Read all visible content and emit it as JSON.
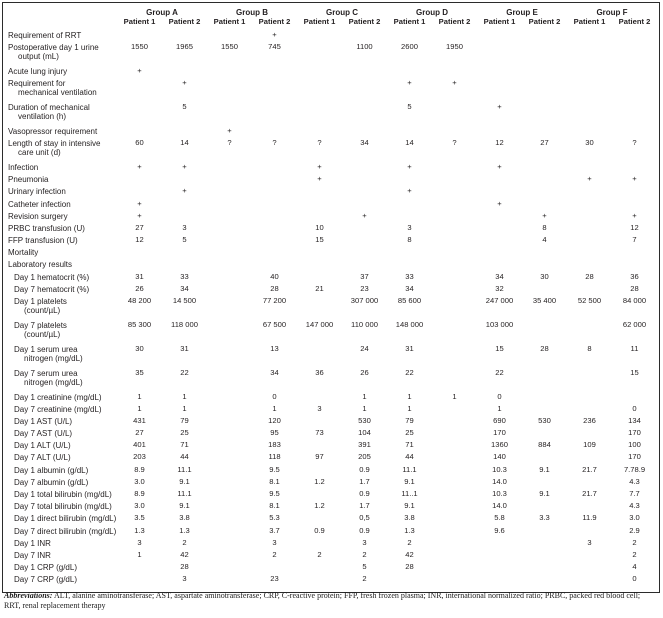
{
  "table": {
    "groups": [
      "Group A",
      "Group B",
      "Group C",
      "Group D",
      "Group E",
      "Group F"
    ],
    "patients": [
      "Patient 1",
      "Patient 2"
    ],
    "rows": [
      {
        "label": "Requirement of RRT",
        "values": [
          "",
          "",
          "",
          "+",
          "",
          "",
          "",
          "",
          "",
          "",
          "",
          ""
        ]
      },
      {
        "label": "Postoperative day 1 urine",
        "label2": "output (mL)",
        "values": [
          "1550",
          "1965",
          "1550",
          "745",
          "",
          "1100",
          "2600",
          "1950",
          "",
          "",
          "",
          ""
        ]
      },
      {
        "label": "Acute lung injury",
        "values": [
          "+",
          "",
          "",
          "",
          "",
          "",
          "",
          "",
          "",
          "",
          "",
          ""
        ]
      },
      {
        "label": "Requirement for",
        "label2": "mechanical ventilation",
        "values": [
          "",
          "+",
          "",
          "",
          "",
          "",
          "+",
          "+",
          "",
          "",
          "",
          ""
        ]
      },
      {
        "label": "Duration of mechanical",
        "label2": "ventilation (h)",
        "values": [
          "",
          "5",
          "",
          "",
          "",
          "",
          "5",
          "",
          "+",
          "",
          "",
          ""
        ]
      },
      {
        "label": "Vasopressor requirement",
        "values": [
          "",
          "",
          "+",
          "",
          "",
          "",
          "",
          "",
          "",
          "",
          "",
          ""
        ]
      },
      {
        "label": "Length of stay in intensive",
        "label2": "care unit (d)",
        "values": [
          "60",
          "14",
          "?",
          "?",
          "?",
          "34",
          "14",
          "?",
          "12",
          "27",
          "30",
          "?"
        ]
      },
      {
        "label": "Infection",
        "values": [
          "+",
          "+",
          "",
          "",
          "+",
          "",
          "+",
          "",
          "+",
          "",
          "",
          ""
        ]
      },
      {
        "label": "Pneumonia",
        "values": [
          "",
          "",
          "",
          "",
          "+",
          "",
          "",
          "",
          "",
          "",
          "+",
          "+"
        ]
      },
      {
        "label": "Urinary infection",
        "values": [
          "",
          "+",
          "",
          "",
          "",
          "",
          "+",
          "",
          "",
          "",
          "",
          ""
        ]
      },
      {
        "label": "Catheter infection",
        "values": [
          "+",
          "",
          "",
          "",
          "",
          "",
          "",
          "",
          "+",
          "",
          "",
          ""
        ]
      },
      {
        "label": "Revision surgery",
        "values": [
          "+",
          "",
          "",
          "",
          "",
          "+",
          "",
          "",
          "",
          "+",
          "",
          "+"
        ]
      },
      {
        "label": "PRBC transfusion (U)",
        "values": [
          "27",
          "3",
          "",
          "",
          "10",
          "",
          "3",
          "",
          "",
          "8",
          "",
          "12"
        ]
      },
      {
        "label": "FFP transfusion (U)",
        "values": [
          "12",
          "5",
          "",
          "",
          "15",
          "",
          "8",
          "",
          "",
          "4",
          "",
          "7"
        ]
      },
      {
        "label": "Mortality",
        "values": [
          "",
          "",
          "",
          "",
          "",
          "",
          "",
          "",
          "",
          "",
          "",
          ""
        ]
      },
      {
        "label": "Laboratory results",
        "values": [
          "",
          "",
          "",
          "",
          "",
          "",
          "",
          "",
          "",
          "",
          "",
          ""
        ]
      },
      {
        "label": "Day 1 hematocrit (%)",
        "sub": true,
        "values": [
          "31",
          "33",
          "",
          "40",
          "",
          "37",
          "33",
          "",
          "34",
          "30",
          "28",
          "36"
        ]
      },
      {
        "label": "Day 7 hematocrit (%)",
        "sub": true,
        "values": [
          "26",
          "34",
          "",
          "28",
          "21",
          "23",
          "34",
          "",
          "32",
          "",
          "",
          "28"
        ]
      },
      {
        "label": "Day 1 platelets",
        "label2": "(count/µL)",
        "sub": true,
        "values": [
          "48 200",
          "14 500",
          "",
          "77 200",
          "",
          "307 000",
          "85 600",
          "",
          "247 000",
          "35 400",
          "52 500",
          "84 000"
        ]
      },
      {
        "label": "Day 7 platelets",
        "label2": "(count/µL)",
        "sub": true,
        "values": [
          "85 300",
          "118 000",
          "",
          "67 500",
          "147 000",
          "110 000",
          "148 000",
          "",
          "103 000",
          "",
          "",
          "62 000"
        ]
      },
      {
        "label": "Day 1 serum urea",
        "label2": "nitrogen (mg/dL)",
        "sub": true,
        "values": [
          "30",
          "31",
          "",
          "13",
          "",
          "24",
          "31",
          "",
          "15",
          "28",
          "8",
          "11"
        ]
      },
      {
        "label": "Day 7 serum urea",
        "label2": "nitrogen (mg/dL)",
        "sub": true,
        "values": [
          "35",
          "22",
          "",
          "34",
          "36",
          "26",
          "22",
          "",
          "22",
          "",
          "",
          "15"
        ]
      },
      {
        "label": "Day 1 creatinine (mg/dL)",
        "sub": true,
        "values": [
          "1",
          "1",
          "",
          "0",
          "",
          "1",
          "1",
          "1",
          "0",
          "",
          "",
          ""
        ]
      },
      {
        "label": "Day 7 creatinine (mg/dL)",
        "sub": true,
        "values": [
          "1",
          "1",
          "",
          "1",
          "3",
          "1",
          "1",
          "",
          "1",
          "",
          "",
          "0"
        ]
      },
      {
        "label": "Day 1 AST (U/L)",
        "sub": true,
        "values": [
          "431",
          "79",
          "",
          "120",
          "",
          "530",
          "79",
          "",
          "690",
          "530",
          "236",
          "134"
        ]
      },
      {
        "label": "Day 7 AST (U/L)",
        "sub": true,
        "values": [
          "27",
          "25",
          "",
          "95",
          "73",
          "104",
          "25",
          "",
          "170",
          "",
          "",
          "170"
        ]
      },
      {
        "label": "Day 1 ALT (U/L)",
        "sub": true,
        "values": [
          "401",
          "71",
          "",
          "183",
          "",
          "391",
          "71",
          "",
          "1360",
          "884",
          "109",
          "100"
        ]
      },
      {
        "label": "Day 7 ALT (U/L)",
        "sub": true,
        "values": [
          "203",
          "44",
          "",
          "118",
          "97",
          "205",
          "44",
          "",
          "140",
          "",
          "",
          "170"
        ]
      },
      {
        "label": "Day 1 albumin (g/dL)",
        "sub": true,
        "values": [
          "8.9",
          "11.1",
          "",
          "9.5",
          "",
          "0.9",
          "11.1",
          "",
          "10.3",
          "9.1",
          "21.7",
          "7.78.9"
        ]
      },
      {
        "label": "Day 7 albumin (g/dL)",
        "sub": true,
        "values": [
          "3.0",
          "9.1",
          "",
          "8.1",
          "1.2",
          "1.7",
          "9.1",
          "",
          "14.0",
          "",
          "",
          "4.3"
        ]
      },
      {
        "label": "Day 1 total bilirubin (mg/dL)",
        "sub": true,
        "values": [
          "8.9",
          "11.1",
          "",
          "9.5",
          "",
          "0.9",
          "11..1",
          "",
          "10.3",
          "9.1",
          "21.7",
          "7.7"
        ]
      },
      {
        "label": "Day 7 total bilirubin (mg/dL)",
        "sub": true,
        "values": [
          "3.0",
          "9.1",
          "",
          "8.1",
          "1.2",
          "1.7",
          "9.1",
          "",
          "14.0",
          "",
          "",
          "4.3"
        ]
      },
      {
        "label": "Day 1 direct bilirubin (mg/dL)",
        "sub": true,
        "values": [
          "3.5",
          "3.8",
          "",
          "5.3",
          "",
          "0,5",
          "3.8",
          "",
          "5.8",
          "3.3",
          "11.9",
          "3.0"
        ]
      },
      {
        "label": "Day 7 direct bilirubin (mg/dL)",
        "sub": true,
        "values": [
          "1.3",
          "1.3",
          "",
          "3.7",
          "0.9",
          "0.9",
          "1.3",
          "",
          "9.6",
          "",
          "",
          "2.9"
        ]
      },
      {
        "label": "Day 1 INR",
        "sub": true,
        "values": [
          "3",
          "2",
          "",
          "3",
          "",
          "3",
          "2",
          "",
          "",
          "",
          "3",
          "2"
        ]
      },
      {
        "label": "Day 7 INR",
        "sub": true,
        "values": [
          "1",
          "42",
          "",
          "2",
          "2",
          "2",
          "42",
          "",
          "",
          "",
          "",
          "2"
        ]
      },
      {
        "label": "Day 1 CRP (g/dL)",
        "sub": true,
        "values": [
          "",
          "28",
          "",
          "",
          "",
          "5",
          "28",
          "",
          "",
          "",
          "",
          "4"
        ]
      },
      {
        "label": "Day 7 CRP (g/dL)",
        "sub": true,
        "values": [
          "",
          "3",
          "",
          "23",
          "",
          "2",
          "",
          "",
          "",
          "",
          "",
          "0"
        ]
      }
    ]
  },
  "footnote": {
    "label": "Abbreviations:",
    "text": " ALT, alanine aminotransferase; AST, aspartate aminotransferase; CRP, C-reactive protein; FFP, fresh frozen plasma; INR, international normalized ratio; PRBC, packed red blood cell; RRT, renal replacement therapy"
  }
}
